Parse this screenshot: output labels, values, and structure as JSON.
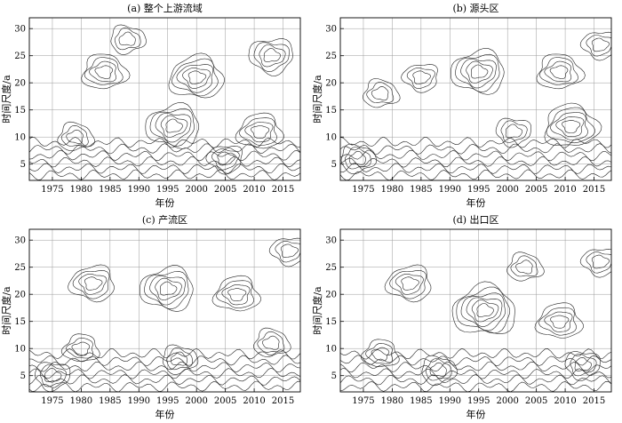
{
  "figure": {
    "panels": [
      {
        "title": "(a) 整个上游流域",
        "xlabel": "年份",
        "ylabel": "时间尺度/a"
      },
      {
        "title": "(b) 源头区",
        "xlabel": "年份",
        "ylabel": "时间尺度/a"
      },
      {
        "title": "(c) 产流区",
        "xlabel": "年份",
        "ylabel": "时间尺度/a"
      },
      {
        "title": "(d) 出口区",
        "xlabel": "年份",
        "ylabel": "时间尺度/a"
      }
    ]
  },
  "chart_data": [
    {
      "type": "contour",
      "title": "(a) 整个上游流域",
      "xlabel": "年份",
      "ylabel": "时间尺度/a",
      "x_ticks": [
        1975,
        1980,
        1985,
        1990,
        1995,
        2000,
        2005,
        2010,
        2015
      ],
      "y_ticks": [
        5,
        10,
        15,
        20,
        25,
        30
      ],
      "xlim": [
        1971,
        2018
      ],
      "ylim": [
        2,
        32
      ],
      "grid": true,
      "centers": [
        {
          "x": 1996,
          "y": 12,
          "rings": 5
        },
        {
          "x": 2000,
          "y": 21,
          "rings": 5
        },
        {
          "x": 2011,
          "y": 11,
          "rings": 4
        },
        {
          "x": 1984,
          "y": 22,
          "rings": 4
        },
        {
          "x": 1979,
          "y": 10,
          "rings": 3
        },
        {
          "x": 1988,
          "y": 28,
          "rings": 3
        },
        {
          "x": 2013,
          "y": 25,
          "rings": 4
        },
        {
          "x": 2005,
          "y": 6,
          "rings": 3
        }
      ]
    },
    {
      "type": "contour",
      "title": "(b) 源头区",
      "xlabel": "年份",
      "ylabel": "时间尺度/a",
      "x_ticks": [
        1975,
        1980,
        1985,
        1990,
        1995,
        2000,
        2005,
        2010,
        2015
      ],
      "y_ticks": [
        5,
        10,
        15,
        20,
        25,
        30
      ],
      "xlim": [
        1971,
        2018
      ],
      "ylim": [
        2,
        32
      ],
      "grid": true,
      "centers": [
        {
          "x": 1995,
          "y": 22,
          "rings": 5
        },
        {
          "x": 1985,
          "y": 21,
          "rings": 3
        },
        {
          "x": 2011,
          "y": 12,
          "rings": 5
        },
        {
          "x": 2009,
          "y": 22,
          "rings": 4
        },
        {
          "x": 1978,
          "y": 18,
          "rings": 3
        },
        {
          "x": 1974,
          "y": 6,
          "rings": 3
        },
        {
          "x": 2001,
          "y": 11,
          "rings": 3
        },
        {
          "x": 2016,
          "y": 27,
          "rings": 3
        }
      ]
    },
    {
      "type": "contour",
      "title": "(c) 产流区",
      "xlabel": "年份",
      "ylabel": "时间尺度/a",
      "x_ticks": [
        1975,
        1980,
        1985,
        1990,
        1995,
        2000,
        2005,
        2010,
        2015
      ],
      "y_ticks": [
        5,
        10,
        15,
        20,
        25,
        30
      ],
      "xlim": [
        1971,
        2018
      ],
      "ylim": [
        2,
        32
      ],
      "grid": true,
      "centers": [
        {
          "x": 1995,
          "y": 21,
          "rings": 5
        },
        {
          "x": 1982,
          "y": 22,
          "rings": 4
        },
        {
          "x": 2007,
          "y": 20,
          "rings": 4
        },
        {
          "x": 1980,
          "y": 10,
          "rings": 3
        },
        {
          "x": 2013,
          "y": 11,
          "rings": 3
        },
        {
          "x": 1997,
          "y": 8,
          "rings": 3
        },
        {
          "x": 1975,
          "y": 5,
          "rings": 3
        },
        {
          "x": 2016,
          "y": 28,
          "rings": 3
        }
      ]
    },
    {
      "type": "contour",
      "title": "(d) 出口区",
      "xlabel": "年份",
      "ylabel": "时间尺度/a",
      "x_ticks": [
        1975,
        1980,
        1985,
        1990,
        1995,
        2000,
        2005,
        2010,
        2015
      ],
      "y_ticks": [
        5,
        10,
        15,
        20,
        25,
        30
      ],
      "xlim": [
        1971,
        2018
      ],
      "ylim": [
        2,
        32
      ],
      "grid": true,
      "centers": [
        {
          "x": 1996,
          "y": 17,
          "rings": 6
        },
        {
          "x": 1983,
          "y": 22,
          "rings": 4
        },
        {
          "x": 2009,
          "y": 15,
          "rings": 4
        },
        {
          "x": 1978,
          "y": 9,
          "rings": 3
        },
        {
          "x": 2003,
          "y": 25,
          "rings": 3
        },
        {
          "x": 1988,
          "y": 6,
          "rings": 3
        },
        {
          "x": 2013,
          "y": 7,
          "rings": 3
        },
        {
          "x": 2016,
          "y": 26,
          "rings": 3
        }
      ]
    }
  ]
}
